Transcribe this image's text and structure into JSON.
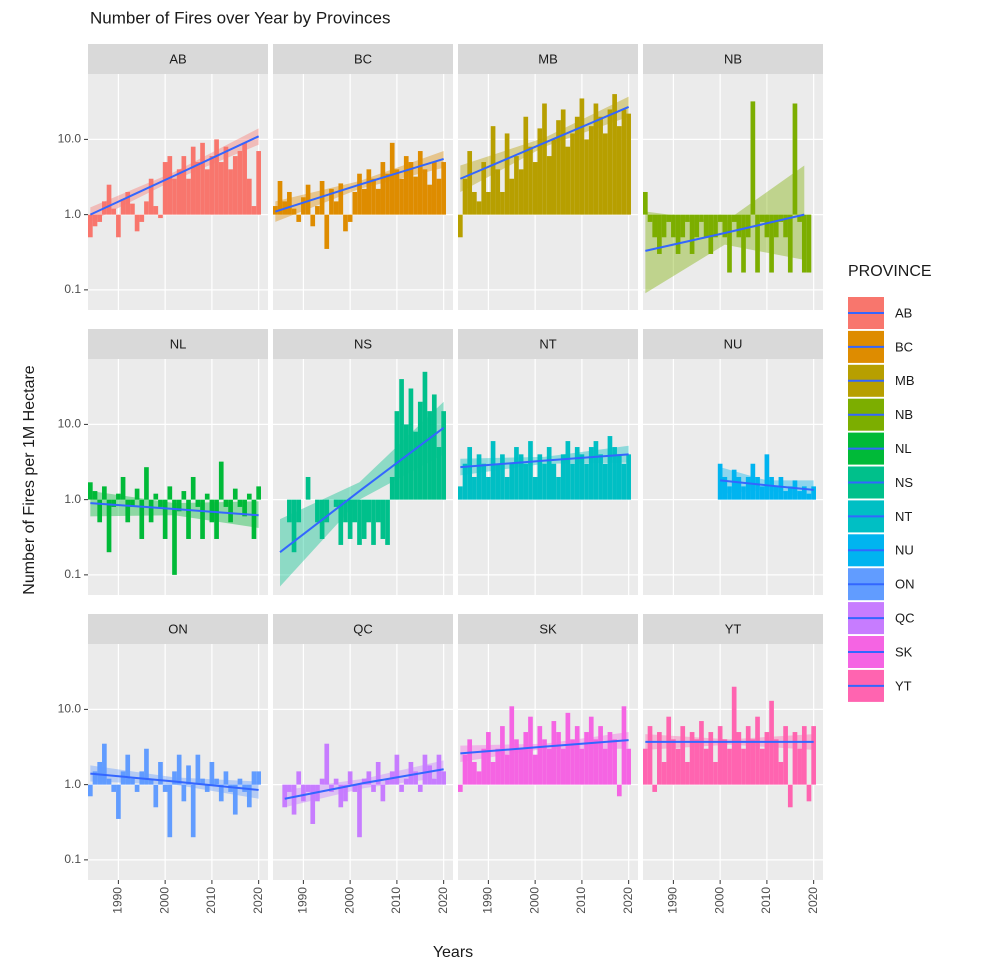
{
  "chart_data": {
    "type": "bar",
    "title": "Number of Fires over Year by Provinces",
    "x_label": "Years",
    "y_label": "Number of Fires per 1M Hectare",
    "legend_title": "PROVINCE",
    "trend_color": "#3366FF",
    "log_y": true,
    "grid": true,
    "xlim": [
      1983.5,
      2022
    ],
    "xticks": [
      1990,
      2000,
      2010,
      2020
    ],
    "ylim": [
      0.054,
      74
    ],
    "yticks": [
      0.1,
      {
        "value": 1,
        "label": "1.0"
      },
      {
        "value": 10,
        "label": "10.0"
      }
    ],
    "x": [
      1984,
      1985,
      1986,
      1987,
      1988,
      1989,
      1990,
      1991,
      1992,
      1993,
      1994,
      1995,
      1996,
      1997,
      1998,
      1999,
      2000,
      2001,
      2002,
      2003,
      2004,
      2005,
      2006,
      2007,
      2008,
      2009,
      2010,
      2011,
      2012,
      2013,
      2014,
      2015,
      2016,
      2017,
      2018,
      2019,
      2020
    ],
    "panels": [
      {
        "name": "AB",
        "color": "#F8766D",
        "values": [
          0.5,
          0.7,
          0.8,
          1.5,
          2.5,
          1.2,
          0.5,
          1.6,
          2,
          1.4,
          0.6,
          0.8,
          1.5,
          3,
          1.3,
          0.9,
          5,
          6,
          3,
          4,
          6,
          3,
          8,
          5,
          9,
          4,
          6,
          10,
          5,
          8,
          4,
          6,
          7,
          9,
          3,
          1.3,
          7
        ],
        "trend": {
          "x": [
            1984,
            2002,
            2020
          ],
          "y": [
            1,
            3.3,
            11
          ],
          "lower": [
            0.8,
            2.9,
            8.5
          ],
          "upper": [
            1.25,
            3.7,
            14
          ]
        }
      },
      {
        "name": "BC",
        "color": "#DE8C00",
        "values": [
          1.3,
          2.8,
          1.5,
          2,
          1.2,
          0.8,
          1.7,
          2.5,
          0.7,
          1.3,
          2.8,
          0.35,
          2.2,
          1.5,
          2.6,
          0.6,
          0.8,
          2,
          3.5,
          2.2,
          4,
          3,
          2.2,
          5,
          3.5,
          9,
          4,
          3,
          6,
          5,
          3.2,
          7,
          4,
          2.5,
          5,
          3,
          5
        ],
        "trend": {
          "x": [
            1984,
            2002,
            2020
          ],
          "y": [
            1.1,
            2.5,
            5.5
          ],
          "lower": [
            0.8,
            2.2,
            4.2
          ],
          "upper": [
            1.5,
            2.8,
            7
          ]
        }
      },
      {
        "name": "MB",
        "color": "#B79F00",
        "values": [
          0.5,
          3,
          7,
          2,
          1.5,
          5,
          2,
          15,
          4,
          2,
          12,
          3,
          6,
          4,
          20,
          8,
          5,
          14,
          30,
          6,
          10,
          18,
          25,
          8,
          12,
          20,
          35,
          10,
          15,
          30,
          20,
          12,
          25,
          40,
          15,
          25,
          22
        ],
        "trend": {
          "x": [
            1984,
            2002,
            2020
          ],
          "y": [
            3,
            9,
            27
          ],
          "lower": [
            2,
            8,
            20
          ],
          "upper": [
            4.5,
            10.5,
            37
          ]
        }
      },
      {
        "name": "NB",
        "color": "#7CAE00",
        "values": [
          2,
          0.8,
          0.5,
          0.3,
          0.5,
          0.8,
          0.5,
          0.3,
          0.5,
          0.8,
          0.3,
          0.5,
          0.8,
          0.5,
          0.3,
          0.5,
          0.8,
          0.5,
          0.17,
          0.8,
          0.5,
          0.17,
          0.5,
          32,
          0.17,
          0.8,
          0.5,
          0.17,
          0.5,
          0.8,
          0.5,
          0.17,
          30,
          0.8,
          0.17,
          0.17,
          null
        ],
        "trend": {
          "x": [
            1984,
            2001,
            2018
          ],
          "y": [
            0.33,
            0.57,
            1
          ],
          "lower": [
            0.09,
            0.4,
            0.25
          ],
          "upper": [
            1.1,
            0.8,
            4.5
          ]
        }
      },
      {
        "name": "NL",
        "color": "#00BA38",
        "values": [
          1.7,
          1.3,
          0.5,
          1.5,
          0.2,
          0.8,
          1.2,
          2,
          0.5,
          0.8,
          1.4,
          0.3,
          2.7,
          0.5,
          1.2,
          0.8,
          0.3,
          1.5,
          0.1,
          0.7,
          1.3,
          0.3,
          2,
          0.8,
          0.3,
          1.2,
          0.5,
          0.3,
          3.2,
          0.8,
          0.5,
          1.4,
          0.8,
          0.6,
          1.2,
          0.3,
          1.5
        ],
        "trend": {
          "x": [
            1984,
            2002,
            2020
          ],
          "y": [
            0.9,
            0.75,
            0.62
          ],
          "lower": [
            0.6,
            0.62,
            0.42
          ],
          "upper": [
            1.3,
            0.9,
            0.95
          ]
        }
      },
      {
        "name": "NS",
        "color": "#00C08B",
        "values": [
          null,
          null,
          1,
          0.5,
          0.2,
          0.5,
          1,
          2,
          1,
          0.5,
          0.3,
          0.5,
          1,
          0.8,
          0.25,
          0.5,
          0.3,
          0.5,
          0.25,
          0.3,
          0.5,
          0.25,
          0.5,
          0.3,
          0.25,
          2,
          15,
          40,
          10,
          30,
          8,
          20,
          50,
          15,
          25,
          5,
          15
        ],
        "trend": {
          "x": [
            1985,
            2002,
            2020
          ],
          "y": [
            0.2,
            1.3,
            9
          ],
          "lower": [
            0.07,
            1,
            4
          ],
          "upper": [
            0.55,
            1.7,
            20
          ]
        }
      },
      {
        "name": "NT",
        "color": "#00BFC4",
        "values": [
          1.5,
          3,
          5,
          2,
          4,
          3,
          2,
          6,
          3,
          4,
          2,
          3,
          5,
          4,
          3,
          6,
          2,
          4,
          3,
          5,
          3,
          2,
          4,
          6,
          3,
          5,
          4,
          3,
          5,
          6,
          4,
          3,
          7,
          5,
          4,
          3,
          4
        ],
        "trend": {
          "x": [
            1984,
            2002,
            2020
          ],
          "y": [
            2.7,
            3.3,
            4
          ],
          "lower": [
            2.1,
            3,
            3.1
          ],
          "upper": [
            3.5,
            3.7,
            5.2
          ]
        }
      },
      {
        "name": "NU",
        "color": "#00B4F0",
        "values": [
          null,
          null,
          null,
          null,
          null,
          null,
          null,
          null,
          null,
          null,
          null,
          null,
          null,
          null,
          null,
          null,
          3,
          2,
          1.5,
          2.5,
          2,
          1.5,
          2,
          3,
          2,
          1.5,
          4,
          2,
          1.5,
          2,
          1.3,
          1.5,
          1.8,
          1.3,
          1.5,
          1.2,
          1.5
        ],
        "trend": {
          "x": [
            2000,
            2010,
            2020
          ],
          "y": [
            1.8,
            1.55,
            1.35
          ],
          "lower": [
            1.2,
            1.35,
            1
          ],
          "upper": [
            2.7,
            1.8,
            1.8
          ]
        }
      },
      {
        "name": "ON",
        "color": "#619CFF",
        "values": [
          0.7,
          1.5,
          2,
          3.5,
          1.2,
          0.8,
          0.35,
          1.5,
          2.5,
          1.2,
          0.8,
          1.5,
          3,
          1.2,
          0.5,
          2,
          0.8,
          0.2,
          1.5,
          2.5,
          0.6,
          1.8,
          0.2,
          2.5,
          1.2,
          0.8,
          2,
          1.2,
          0.6,
          1.5,
          0.8,
          0.4,
          1.2,
          0.8,
          0.5,
          1.5,
          1.5
        ],
        "trend": {
          "x": [
            1984,
            2002,
            2020
          ],
          "y": [
            1.4,
            1.1,
            0.85
          ],
          "lower": [
            1.1,
            1,
            0.65
          ],
          "upper": [
            1.8,
            1.25,
            1.1
          ]
        }
      },
      {
        "name": "QC",
        "color": "#C77CFF",
        "values": [
          null,
          null,
          0.5,
          0.8,
          0.4,
          1.5,
          0.6,
          0.8,
          0.3,
          0.6,
          1.2,
          3.5,
          0.8,
          1.2,
          0.5,
          0.6,
          1.5,
          0.8,
          0.2,
          1.2,
          1.5,
          0.8,
          2,
          0.6,
          1.2,
          1.5,
          2.5,
          0.8,
          1.2,
          2,
          1.5,
          0.8,
          2.5,
          1.8,
          1.2,
          2.5,
          1.5
        ],
        "trend": {
          "x": [
            1986,
            2003,
            2020
          ],
          "y": [
            0.65,
            1.05,
            1.6
          ],
          "lower": [
            0.5,
            0.9,
            1.25
          ],
          "upper": [
            0.85,
            1.2,
            2.1
          ]
        }
      },
      {
        "name": "SK",
        "color": "#F564E3",
        "values": [
          0.8,
          2.5,
          4,
          2,
          1.5,
          3,
          5,
          2,
          3,
          6,
          2.5,
          11,
          4,
          3,
          5,
          8,
          2.5,
          6,
          4,
          3,
          7,
          5,
          3,
          9,
          4,
          6,
          3,
          5,
          8,
          4,
          6,
          3,
          5,
          4,
          0.7,
          11,
          3
        ],
        "trend": {
          "x": [
            1984,
            2002,
            2020
          ],
          "y": [
            2.6,
            3.2,
            3.9
          ],
          "lower": [
            2,
            3,
            3
          ],
          "upper": [
            3.3,
            3.5,
            5
          ]
        }
      },
      {
        "name": "YT",
        "color": "#FF64B0",
        "values": [
          3,
          6,
          0.8,
          5,
          2,
          8,
          4,
          3,
          6,
          2,
          5,
          4,
          7,
          3,
          5,
          2,
          6,
          4,
          3,
          20,
          5,
          3,
          6,
          4,
          8,
          3,
          5,
          13,
          4,
          2,
          6,
          0.5,
          5,
          3,
          6,
          0.6,
          6
        ],
        "trend": {
          "x": [
            1984,
            2002,
            2020
          ],
          "y": [
            3.7,
            3.7,
            3.7
          ],
          "lower": [
            2.9,
            3.4,
            2.9
          ],
          "upper": [
            4.7,
            4,
            4.7
          ]
        }
      }
    ]
  }
}
